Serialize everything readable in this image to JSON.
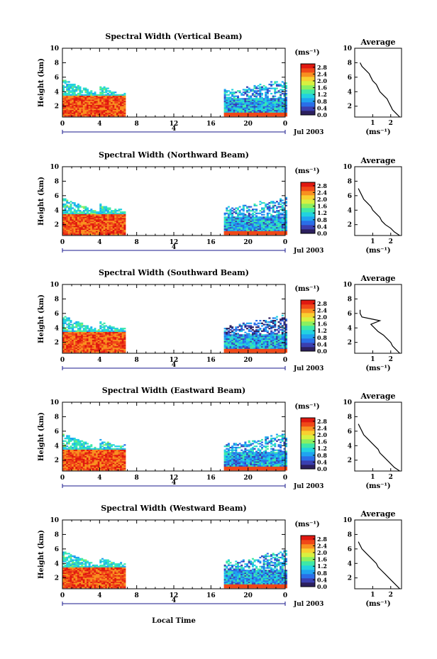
{
  "chart_data": {
    "type": "heatmap",
    "common": {
      "x_ticks": [
        "0",
        "4",
        "8",
        "12",
        "16",
        "20",
        "0"
      ],
      "x_tick_hours": [
        0,
        4,
        8,
        12,
        16,
        20,
        24
      ],
      "x_range": [
        0,
        24
      ],
      "x_label": "Local Time",
      "date_label": "Jul 2003",
      "day_marker": "4",
      "y_ticks": [
        "2",
        "4",
        "6",
        "8",
        "10"
      ],
      "y_tick_values": [
        2,
        4,
        6,
        8,
        10
      ],
      "y_range": [
        0.5,
        10
      ],
      "y_label": "Height (km)",
      "colorbar_unit": "(ms⁻¹)",
      "colorbar_ticks": [
        "0.0",
        "0.4",
        "0.8",
        "1.2",
        "1.6",
        "2.0",
        "2.4",
        "2.8"
      ],
      "colorbar_values": [
        0.0,
        0.4,
        0.8,
        1.2,
        1.6,
        2.0,
        2.4,
        2.8
      ],
      "colorbar_range": [
        0,
        3.0
      ],
      "colorbar_colors": [
        "#2c1f5e",
        "#3a3fb0",
        "#2a6ee8",
        "#1fa4f0",
        "#22d2e0",
        "#3ee8a8",
        "#8af060",
        "#d8f040",
        "#f8d030",
        "#f89020",
        "#f04818",
        "#e01810"
      ],
      "profile_title": "Average",
      "profile_x_label": "(ms⁻¹)",
      "data_gap_hours": [
        6.7,
        17.2
      ]
    },
    "panels": [
      {
        "title": "Spectral Width (Vertical Beam)",
        "profile_x_ticks": [
          "1",
          "2"
        ],
        "profile_x_tick_values": [
          1,
          2
        ],
        "profile_x_range": [
          0,
          2.6
        ],
        "profile_y_ticks": [
          "2",
          "4",
          "6",
          "8",
          "10"
        ],
        "profile_y_range": [
          0.5,
          10
        ],
        "profile": {
          "height": [
            0.5,
            1.0,
            1.5,
            2.0,
            2.5,
            3.0,
            3.5,
            4.0,
            4.5,
            5.0,
            5.5,
            6.0,
            6.5,
            7.0,
            7.5,
            8.0
          ],
          "width": [
            2.5,
            2.3,
            2.1,
            2.0,
            1.9,
            1.8,
            1.6,
            1.4,
            1.3,
            1.2,
            1.0,
            0.9,
            0.8,
            0.6,
            0.4,
            0.3
          ]
        }
      },
      {
        "title": "Spectral Width (Northward Beam)",
        "profile_x_ticks": [
          "1",
          "2"
        ],
        "profile_x_tick_values": [
          1,
          2
        ],
        "profile_x_range": [
          0,
          2.6
        ],
        "profile_y_ticks": [
          "2",
          "4",
          "6",
          "8",
          "10"
        ],
        "profile_y_range": [
          0.5,
          10
        ],
        "profile": {
          "height": [
            0.5,
            1.0,
            1.5,
            2.0,
            2.5,
            3.0,
            3.5,
            4.0,
            4.5,
            5.0,
            5.5,
            6.0,
            6.5,
            7.0
          ],
          "width": [
            2.5,
            2.2,
            2.0,
            1.7,
            1.5,
            1.4,
            1.2,
            1.0,
            0.9,
            0.7,
            0.5,
            0.4,
            0.3,
            0.2
          ]
        }
      },
      {
        "title": "Spectral Width (Southward Beam)",
        "profile_x_ticks": [
          "1",
          "2"
        ],
        "profile_x_tick_values": [
          1,
          2
        ],
        "profile_x_range": [
          0,
          2.6
        ],
        "profile_y_ticks": [
          "2",
          "4",
          "6",
          "8",
          "10"
        ],
        "profile_y_range": [
          0.5,
          10
        ],
        "profile": {
          "height": [
            0.5,
            1.0,
            1.5,
            2.0,
            2.5,
            3.0,
            3.5,
            4.0,
            4.5,
            5.0,
            5.5,
            6.0,
            6.5
          ],
          "width": [
            2.5,
            2.3,
            2.1,
            2.0,
            1.8,
            1.6,
            1.3,
            1.1,
            0.9,
            1.4,
            0.4,
            0.3,
            0.3
          ]
        }
      },
      {
        "title": "Spectral Width (Eastward Beam)",
        "profile_x_ticks": [
          "1",
          "2"
        ],
        "profile_x_tick_values": [
          1,
          2
        ],
        "profile_x_range": [
          0,
          2.6
        ],
        "profile_y_ticks": [
          "2",
          "4",
          "6",
          "8",
          "10"
        ],
        "profile_y_range": [
          0.5,
          10
        ],
        "profile": {
          "height": [
            0.5,
            1.0,
            1.5,
            2.0,
            2.5,
            3.0,
            3.5,
            4.0,
            4.5,
            5.0,
            5.5,
            6.0,
            6.5,
            7.0
          ],
          "width": [
            2.5,
            2.2,
            2.0,
            1.8,
            1.6,
            1.4,
            1.3,
            1.1,
            0.9,
            0.7,
            0.5,
            0.4,
            0.3,
            0.2
          ]
        }
      },
      {
        "title": "Spectral Width (Westward Beam)",
        "profile_x_ticks": [
          "1",
          "2"
        ],
        "profile_x_tick_values": [
          1,
          2
        ],
        "profile_x_range": [
          0,
          2.6
        ],
        "profile_y_ticks": [
          "2",
          "4",
          "6",
          "8",
          "10"
        ],
        "profile_y_range": [
          0.5,
          10
        ],
        "profile": {
          "height": [
            0.5,
            1.0,
            1.5,
            2.0,
            2.5,
            3.0,
            3.5,
            4.0,
            4.5,
            5.0,
            5.5,
            6.0,
            6.5,
            7.0
          ],
          "width": [
            2.5,
            2.3,
            2.1,
            1.9,
            1.7,
            1.5,
            1.3,
            1.2,
            1.0,
            0.8,
            0.6,
            0.4,
            0.3,
            0.2
          ]
        }
      }
    ]
  }
}
